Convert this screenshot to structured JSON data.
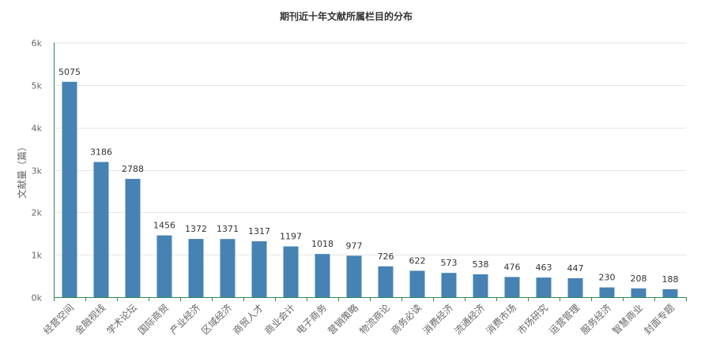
{
  "chart_data": {
    "type": "bar",
    "title": "期刊近十年文献所属栏目的分布",
    "xlabel": "",
    "ylabel": "文献量（篇）",
    "ylim": [
      0,
      6000
    ],
    "yticks": [
      0,
      1000,
      2000,
      3000,
      4000,
      5000,
      6000
    ],
    "ytick_labels": [
      "0k",
      "1k",
      "2k",
      "3k",
      "4k",
      "5k",
      "6k"
    ],
    "categories": [
      "经营空间",
      "金融视线",
      "学术论坛",
      "国际商贸",
      "产业经济",
      "区域经济",
      "商贸人才",
      "商业会计",
      "电子商务",
      "营销策略",
      "物流商论",
      "商务必读",
      "消费经济",
      "流通经济",
      "消费市场",
      "市场研究",
      "运营管理",
      "服务经济",
      "智慧商业",
      "封面专题"
    ],
    "values": [
      5075,
      3186,
      2788,
      1456,
      1372,
      1371,
      1317,
      1197,
      1018,
      977,
      726,
      622,
      573,
      538,
      476,
      463,
      447,
      230,
      208,
      188
    ],
    "grid": true,
    "legend": "none",
    "bar_color": "#4682b4",
    "axis_color": "#2e8b57"
  }
}
